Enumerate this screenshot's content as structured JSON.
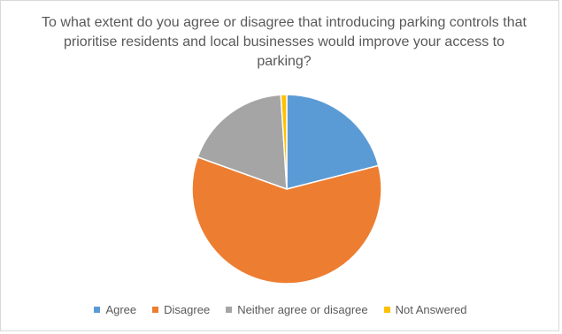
{
  "chart_data": {
    "type": "pie",
    "title": "To what extent do you agree or disagree that introducing parking controls that prioritise residents and local businesses would improve your access to parking?",
    "categories": [
      "Agree",
      "Disagree",
      "Neither agree or disagree",
      "Not Answered"
    ],
    "values": [
      21,
      59.5,
      18.5,
      1
    ],
    "colors": [
      "#5b9bd5",
      "#ed7d31",
      "#a5a5a5",
      "#ffc000"
    ],
    "legend_position": "bottom",
    "start_angle": "top, clockwise"
  }
}
